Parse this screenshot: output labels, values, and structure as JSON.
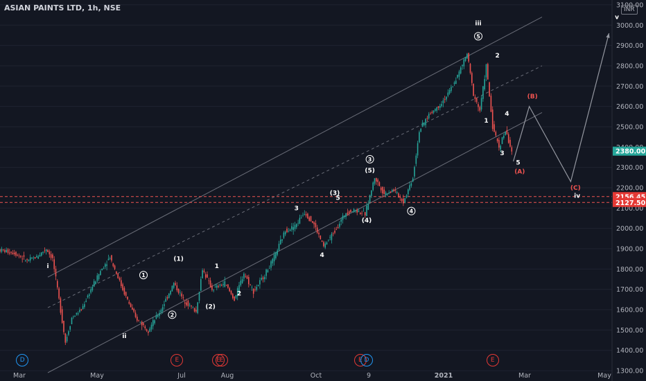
{
  "header": {
    "title": "ASIAN PAINTS LTD, 1h, NSE",
    "currency": "INR"
  },
  "colors": {
    "background": "#131722",
    "up": "#26a69a",
    "down": "#ef5350",
    "label": "#ffffff",
    "red_label": "#ef5350",
    "grid": "#1f2330",
    "line": "#9598a1"
  },
  "chart_data": {
    "type": "candlestick",
    "symbol": "ASIAN PAINTS LTD",
    "interval": "1h",
    "exchange": "NSE",
    "x_ticks": [
      "Mar",
      "May",
      "Jul",
      "Aug",
      "Oct",
      "9",
      "2021",
      "Mar",
      "May"
    ],
    "y_ticks": [
      1300,
      1400,
      1500,
      1600,
      1700,
      1800,
      1900,
      2000,
      2100,
      2200,
      2300,
      2400,
      2500,
      2600,
      2700,
      2800,
      2900,
      3000,
      3100
    ],
    "y_tick_labels": [
      "1300.00",
      "1400.00",
      "1500.00",
      "1600.00",
      "1700.00",
      "1800.00",
      "1900.00",
      "2000.00",
      "2100.00",
      "2200.00",
      "2300.00",
      "2400.00",
      "2500.00",
      "2600.00",
      "2700.00",
      "2800.00",
      "2900.00",
      "3000.00",
      "3100.00"
    ],
    "ylim": [
      1290,
      3110
    ],
    "price_series": [
      {
        "x": 0.0,
        "y": 1895
      },
      {
        "x": 0.5,
        "y": 1880
      },
      {
        "x": 0.9,
        "y": 1840
      },
      {
        "x": 1.2,
        "y": 1860
      },
      {
        "x": 1.5,
        "y": 1900
      },
      {
        "x": 1.7,
        "y": 1850
      },
      {
        "x": 1.9,
        "y": 1650
      },
      {
        "x": 2.1,
        "y": 1440
      },
      {
        "x": 2.3,
        "y": 1560
      },
      {
        "x": 2.6,
        "y": 1600
      },
      {
        "x": 2.9,
        "y": 1700
      },
      {
        "x": 3.2,
        "y": 1790
      },
      {
        "x": 3.5,
        "y": 1860
      },
      {
        "x": 3.9,
        "y": 1700
      },
      {
        "x": 4.3,
        "y": 1560
      },
      {
        "x": 4.7,
        "y": 1500
      },
      {
        "x": 5.1,
        "y": 1600
      },
      {
        "x": 5.5,
        "y": 1730
      },
      {
        "x": 5.8,
        "y": 1650
      },
      {
        "x": 6.2,
        "y": 1590
      },
      {
        "x": 6.4,
        "y": 1800
      },
      {
        "x": 6.7,
        "y": 1700
      },
      {
        "x": 7.1,
        "y": 1730
      },
      {
        "x": 7.4,
        "y": 1650
      },
      {
        "x": 7.7,
        "y": 1780
      },
      {
        "x": 8.0,
        "y": 1690
      },
      {
        "x": 8.3,
        "y": 1760
      },
      {
        "x": 8.6,
        "y": 1840
      },
      {
        "x": 9.0,
        "y": 1990
      },
      {
        "x": 9.3,
        "y": 2010
      },
      {
        "x": 9.6,
        "y": 2080
      },
      {
        "x": 9.9,
        "y": 2020
      },
      {
        "x": 10.2,
        "y": 1910
      },
      {
        "x": 10.6,
        "y": 2000
      },
      {
        "x": 10.9,
        "y": 2080
      },
      {
        "x": 11.2,
        "y": 2090
      },
      {
        "x": 11.5,
        "y": 2070
      },
      {
        "x": 11.8,
        "y": 2250
      },
      {
        "x": 12.1,
        "y": 2170
      },
      {
        "x": 12.4,
        "y": 2190
      },
      {
        "x": 12.7,
        "y": 2130
      },
      {
        "x": 13.0,
        "y": 2250
      },
      {
        "x": 13.2,
        "y": 2480
      },
      {
        "x": 13.5,
        "y": 2560
      },
      {
        "x": 13.8,
        "y": 2600
      },
      {
        "x": 14.1,
        "y": 2660
      },
      {
        "x": 14.4,
        "y": 2750
      },
      {
        "x": 14.7,
        "y": 2860
      },
      {
        "x": 14.9,
        "y": 2660
      },
      {
        "x": 15.1,
        "y": 2580
      },
      {
        "x": 15.3,
        "y": 2800
      },
      {
        "x": 15.5,
        "y": 2500
      },
      {
        "x": 15.7,
        "y": 2400
      },
      {
        "x": 15.9,
        "y": 2480
      },
      {
        "x": 16.1,
        "y": 2380
      }
    ],
    "projection": [
      {
        "x": 16.1,
        "y": 2330
      },
      {
        "x": 16.6,
        "y": 2600
      },
      {
        "x": 17.9,
        "y": 2230
      },
      {
        "x": 19.1,
        "y": 2960
      }
    ],
    "horizontal_levels": [
      {
        "value": 2156.45,
        "label": "2156.45",
        "style": "dashed",
        "color": "#ef5350"
      },
      {
        "value": 2127.5,
        "label": "2127.50",
        "style": "dashed",
        "color": "#ef5350"
      }
    ],
    "last_price": {
      "value": 2380.0,
      "label": "2380.00",
      "color": "#26a69a"
    },
    "channel_lines": [
      {
        "p1": {
          "x": 1.5,
          "y": 1760
        },
        "p2": {
          "x": 17.0,
          "y": 3040
        },
        "style": "solid"
      },
      {
        "p1": {
          "x": 1.5,
          "y": 1610
        },
        "p2": {
          "x": 17.0,
          "y": 2800
        },
        "style": "dashed"
      },
      {
        "p1": {
          "x": 1.5,
          "y": 1290
        },
        "p2": {
          "x": 17.0,
          "y": 2570
        },
        "style": "solid"
      }
    ],
    "wave_labels": [
      {
        "text": "i",
        "x": 1.5,
        "y": 1805,
        "style": "plain",
        "color": "#ffffff"
      },
      {
        "text": "ii",
        "x": 3.9,
        "y": 1460,
        "style": "plain",
        "color": "#ffffff"
      },
      {
        "text": "1",
        "x": 4.5,
        "y": 1760,
        "style": "circled",
        "color": "#ffffff"
      },
      {
        "text": "2",
        "x": 5.4,
        "y": 1565,
        "style": "circled",
        "color": "#ffffff"
      },
      {
        "text": "(1)",
        "x": 5.6,
        "y": 1840,
        "style": "plain",
        "color": "#ffffff"
      },
      {
        "text": "(2)",
        "x": 6.6,
        "y": 1605,
        "style": "plain",
        "color": "#ffffff"
      },
      {
        "text": "1",
        "x": 6.8,
        "y": 1805,
        "style": "plain",
        "color": "#ffffff"
      },
      {
        "text": "2",
        "x": 7.5,
        "y": 1670,
        "style": "plain",
        "color": "#ffffff"
      },
      {
        "text": "3",
        "x": 9.3,
        "y": 2090,
        "style": "plain",
        "color": "#ffffff"
      },
      {
        "text": "4",
        "x": 10.1,
        "y": 1860,
        "style": "plain",
        "color": "#ffffff"
      },
      {
        "text": "(3)",
        "x": 10.5,
        "y": 2165,
        "style": "plain",
        "color": "#ffffff"
      },
      {
        "text": "5",
        "x": 10.6,
        "y": 2140,
        "style": "plain",
        "color": "#ffffff"
      },
      {
        "text": "(4)",
        "x": 11.5,
        "y": 2030,
        "style": "plain",
        "color": "#ffffff"
      },
      {
        "text": "3",
        "x": 11.6,
        "y": 2330,
        "style": "circled",
        "color": "#ffffff"
      },
      {
        "text": "(5)",
        "x": 11.6,
        "y": 2275,
        "style": "plain",
        "color": "#ffffff"
      },
      {
        "text": "4",
        "x": 12.9,
        "y": 2075,
        "style": "circled",
        "color": "#ffffff"
      },
      {
        "text": "iii",
        "x": 15.0,
        "y": 3000,
        "style": "plain",
        "color": "#ffffff"
      },
      {
        "text": "5",
        "x": 15.0,
        "y": 2935,
        "style": "circled",
        "color": "#ffffff"
      },
      {
        "text": "2",
        "x": 15.6,
        "y": 2840,
        "style": "plain",
        "color": "#ffffff"
      },
      {
        "text": "1",
        "x": 15.25,
        "y": 2520,
        "style": "plain",
        "color": "#ffffff"
      },
      {
        "text": "4",
        "x": 15.9,
        "y": 2555,
        "style": "plain",
        "color": "#ffffff"
      },
      {
        "text": "3",
        "x": 15.75,
        "y": 2360,
        "style": "plain",
        "color": "#ffffff"
      },
      {
        "text": "5",
        "x": 16.25,
        "y": 2315,
        "style": "plain",
        "color": "#ffffff"
      },
      {
        "text": "(A)",
        "x": 16.3,
        "y": 2270,
        "style": "plain",
        "color": "#ef5350"
      },
      {
        "text": "(B)",
        "x": 16.7,
        "y": 2640,
        "style": "plain",
        "color": "#ef5350"
      },
      {
        "text": "(C)",
        "x": 18.05,
        "y": 2190,
        "style": "plain",
        "color": "#ef5350"
      },
      {
        "text": "iv",
        "x": 18.1,
        "y": 2150,
        "style": "plain",
        "color": "#ffffff"
      },
      {
        "text": "v",
        "x": 19.35,
        "y": 3030,
        "style": "plain",
        "color": "#ffffff"
      }
    ],
    "events": [
      {
        "type": "D",
        "x": 0.7
      },
      {
        "type": "E",
        "x": 5.55
      },
      {
        "type": "E",
        "x": 6.85
      },
      {
        "type": "E",
        "x": 6.95
      },
      {
        "type": "E",
        "x": 11.3
      },
      {
        "type": "D",
        "x": 11.5
      },
      {
        "type": "E",
        "x": 15.45
      }
    ]
  }
}
